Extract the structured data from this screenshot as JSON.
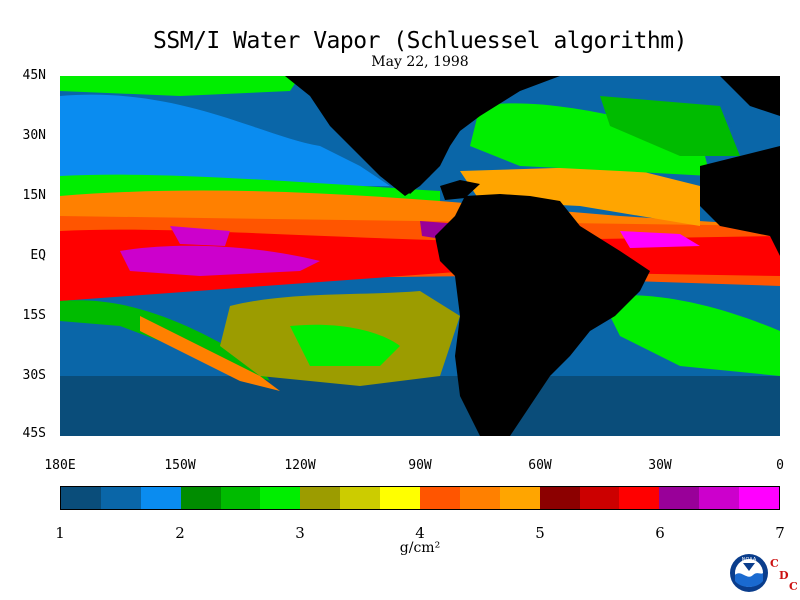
{
  "title": "SSM/I Water Vapor (Schluessel algorithm)",
  "subtitle": "May 22, 1998",
  "lat_labels": [
    "45N",
    "30N",
    "15N",
    "EQ",
    "15S",
    "30S",
    "45S"
  ],
  "lon_labels": [
    "180E",
    "150W",
    "120W",
    "90W",
    "60W",
    "30W",
    "0"
  ],
  "colorbar": {
    "colors": [
      "#0a4d7a",
      "#0a66a8",
      "#0a8cf0",
      "#008c00",
      "#00bb00",
      "#00ee00",
      "#9c9c00",
      "#cccc00",
      "#ffff00",
      "#ff5500",
      "#ff8000",
      "#ffa500",
      "#8c0000",
      "#cc0000",
      "#ff0000",
      "#990099",
      "#cc00cc",
      "#ff00ff"
    ],
    "tick_labels": [
      "1",
      "2",
      "3",
      "4",
      "5",
      "6",
      "7"
    ],
    "units": "g/cm²"
  },
  "logo": {
    "badge": "NOAA",
    "org_letters": [
      "C",
      "D",
      "C"
    ]
  }
}
